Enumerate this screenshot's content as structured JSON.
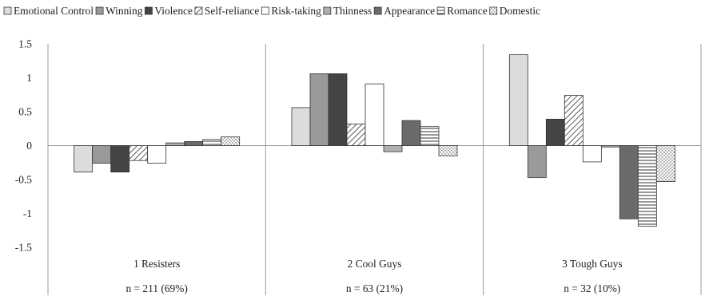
{
  "chart_data": {
    "type": "bar",
    "title": "",
    "xlabel": "",
    "ylabel": "",
    "ylim": [
      -1.5,
      1.5
    ],
    "yticks": [
      "1.5",
      "1",
      "0.5",
      "0",
      "-0.5",
      "-1",
      "-1.5"
    ],
    "yticks_values": [
      1.5,
      1,
      0.5,
      0,
      -0.5,
      -1,
      -1.5
    ],
    "grid": false,
    "legend_position": "top",
    "categories": [
      "1 Resisters",
      "2 Cool Guys",
      "3 Tough Guys"
    ],
    "category_sublabels": [
      "n = 211 (69%)",
      "n = 63 (21%)",
      "n = 32 (10%)"
    ],
    "series": [
      {
        "name": "Emotional Control",
        "fill": "#dcdcdc",
        "pattern": "solid",
        "values": [
          -0.39,
          0.56,
          1.34
        ]
      },
      {
        "name": "Winning",
        "fill": "#9a9a9a",
        "pattern": "solid",
        "values": [
          -0.26,
          1.06,
          -0.47
        ]
      },
      {
        "name": "Violence",
        "fill": "#444444",
        "pattern": "solid",
        "values": [
          -0.39,
          1.06,
          0.39
        ]
      },
      {
        "name": "Self-reliance",
        "fill": "#ffffff",
        "pattern": "diagonal",
        "values": [
          -0.22,
          0.32,
          0.74
        ]
      },
      {
        "name": "Risk-taking",
        "fill": "#ffffff",
        "pattern": "solid",
        "values": [
          -0.26,
          0.91,
          -0.24
        ]
      },
      {
        "name": "Thinness",
        "fill": "#b0b0b0",
        "pattern": "solid",
        "values": [
          0.04,
          -0.09,
          -0.02
        ]
      },
      {
        "name": "Appearance",
        "fill": "#6a6a6a",
        "pattern": "solid",
        "values": [
          0.06,
          0.37,
          -1.08
        ]
      },
      {
        "name": "Romance",
        "fill": "#ffffff",
        "pattern": "horizontal",
        "values": [
          0.09,
          0.28,
          -1.19
        ]
      },
      {
        "name": "Domestic",
        "fill": "#ffffff",
        "pattern": "dots",
        "values": [
          0.13,
          -0.15,
          -0.53
        ]
      }
    ]
  }
}
